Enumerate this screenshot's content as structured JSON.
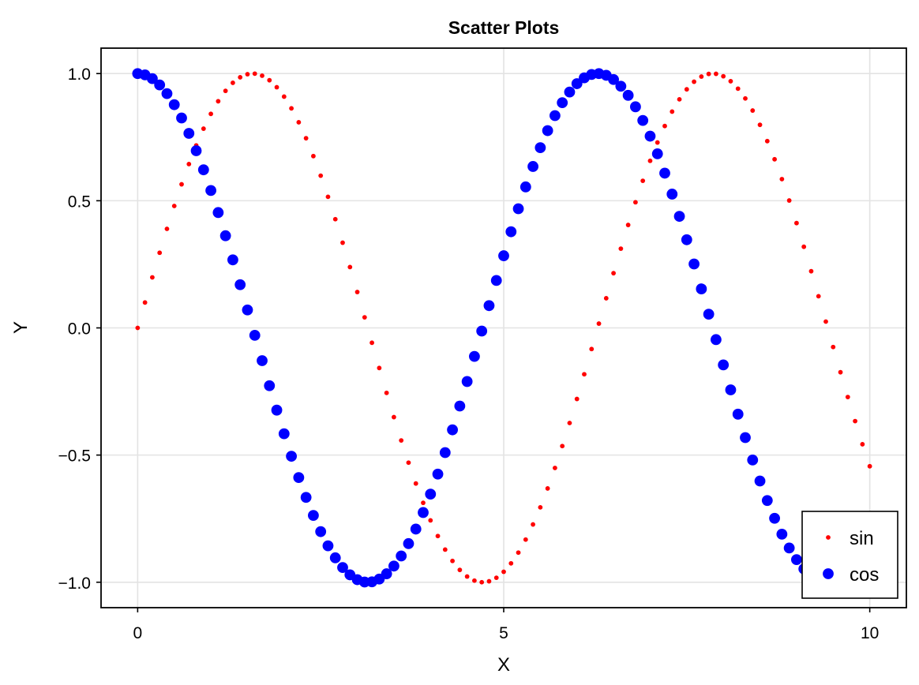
{
  "chart_data": {
    "type": "scatter",
    "title": "Scatter Plots",
    "xlabel": "X",
    "ylabel": "Y",
    "xlim": [
      -0.5,
      10.5
    ],
    "ylim": [
      -1.1,
      1.1
    ],
    "xticks": [
      0,
      5,
      10
    ],
    "xtick_labels": [
      "0",
      "5",
      "10"
    ],
    "yticks": [
      -1.0,
      -0.5,
      0.0,
      0.5,
      1.0
    ],
    "ytick_labels": [
      "−1.0",
      "−0.5",
      "0.0",
      "0.5",
      "1.0"
    ],
    "grid": true,
    "legend_position": "bottom-right",
    "x": [
      0.0,
      0.1,
      0.2,
      0.3,
      0.4,
      0.5,
      0.6,
      0.7,
      0.8,
      0.9,
      1.0,
      1.1,
      1.2,
      1.3,
      1.4,
      1.5,
      1.6,
      1.7,
      1.8,
      1.9,
      2.0,
      2.1,
      2.2,
      2.3,
      2.4,
      2.5,
      2.6,
      2.7,
      2.8,
      2.9,
      3.0,
      3.1,
      3.2,
      3.3,
      3.4,
      3.5,
      3.6,
      3.7,
      3.8,
      3.9,
      4.0,
      4.1,
      4.2,
      4.3,
      4.4,
      4.5,
      4.6,
      4.7,
      4.8,
      4.9,
      5.0,
      5.1,
      5.2,
      5.3,
      5.4,
      5.5,
      5.6,
      5.7,
      5.8,
      5.9,
      6.0,
      6.1,
      6.2,
      6.3,
      6.4,
      6.5,
      6.6,
      6.7,
      6.8,
      6.9,
      7.0,
      7.1,
      7.2,
      7.3,
      7.4,
      7.5,
      7.6,
      7.7,
      7.8,
      7.9,
      8.0,
      8.1,
      8.2,
      8.3,
      8.4,
      8.5,
      8.6,
      8.7,
      8.8,
      8.9,
      9.0,
      9.1,
      9.2,
      9.3,
      9.4,
      9.5,
      9.6,
      9.7,
      9.8,
      9.9,
      10.0
    ],
    "series": [
      {
        "name": "sin",
        "color": "#ff0000",
        "marker_size": "small",
        "values": [
          0.0,
          0.0998,
          0.1987,
          0.2955,
          0.3894,
          0.4794,
          0.5646,
          0.6442,
          0.7174,
          0.7833,
          0.8415,
          0.8912,
          0.932,
          0.9636,
          0.9854,
          0.9975,
          0.9996,
          0.9917,
          0.9738,
          0.9463,
          0.9093,
          0.8632,
          0.8085,
          0.7457,
          0.6755,
          0.5985,
          0.5155,
          0.4274,
          0.335,
          0.2392,
          0.1411,
          0.0416,
          -0.0584,
          -0.1577,
          -0.2555,
          -0.3508,
          -0.4425,
          -0.5298,
          -0.6119,
          -0.6878,
          -0.7568,
          -0.8183,
          -0.8716,
          -0.9162,
          -0.9516,
          -0.9775,
          -0.9937,
          -0.9999,
          -0.9962,
          -0.9825,
          -0.9589,
          -0.9258,
          -0.8835,
          -0.8323,
          -0.7728,
          -0.7055,
          -0.6313,
          -0.5507,
          -0.4646,
          -0.3739,
          -0.2794,
          -0.1822,
          -0.0831,
          0.0168,
          0.1165,
          0.2151,
          0.3115,
          0.4048,
          0.4941,
          0.5784,
          0.657,
          0.729,
          0.7937,
          0.8504,
          0.8987,
          0.938,
          0.9679,
          0.9882,
          0.9985,
          0.9989,
          0.9894,
          0.9699,
          0.9407,
          0.9022,
          0.8546,
          0.7985,
          0.7344,
          0.663,
          0.585,
          0.501,
          0.4121,
          0.319,
          0.2229,
          0.1245,
          0.0248,
          -0.0752,
          -0.1743,
          -0.2718,
          -0.3665,
          -0.4575,
          -0.544
        ]
      },
      {
        "name": "cos",
        "color": "#0000ff",
        "marker_size": "large",
        "values": [
          1.0,
          0.995,
          0.9801,
          0.9553,
          0.9211,
          0.8776,
          0.8253,
          0.7648,
          0.6967,
          0.6216,
          0.5403,
          0.4536,
          0.3624,
          0.2675,
          0.17,
          0.0707,
          -0.0292,
          -0.1288,
          -0.2272,
          -0.3233,
          -0.4161,
          -0.5048,
          -0.5885,
          -0.6663,
          -0.7374,
          -0.8011,
          -0.8569,
          -0.904,
          -0.9422,
          -0.971,
          -0.99,
          -0.9991,
          -0.9983,
          -0.9875,
          -0.9668,
          -0.9365,
          -0.8968,
          -0.8481,
          -0.791,
          -0.7259,
          -0.6536,
          -0.5748,
          -0.4903,
          -0.4008,
          -0.3073,
          -0.2108,
          -0.1122,
          -0.0124,
          0.0875,
          0.1865,
          0.2837,
          0.378,
          0.4685,
          0.5544,
          0.6347,
          0.7087,
          0.7756,
          0.8347,
          0.8855,
          0.9275,
          0.9602,
          0.9833,
          0.9965,
          0.9999,
          0.9932,
          0.9766,
          0.9502,
          0.9144,
          0.8694,
          0.8157,
          0.7539,
          0.6845,
          0.6084,
          0.5261,
          0.4385,
          0.3466,
          0.2513,
          0.1534,
          0.054,
          -0.046,
          -0.1455,
          -0.2435,
          -0.3392,
          -0.4314,
          -0.5193,
          -0.602,
          -0.6787,
          -0.7486,
          -0.8111,
          -0.8654,
          -0.9111,
          -0.9477,
          -0.9748,
          -0.9922,
          -0.9997,
          -0.9972,
          -0.9847,
          -0.9624,
          -0.9304,
          -0.8892,
          -0.8391
        ]
      }
    ]
  }
}
